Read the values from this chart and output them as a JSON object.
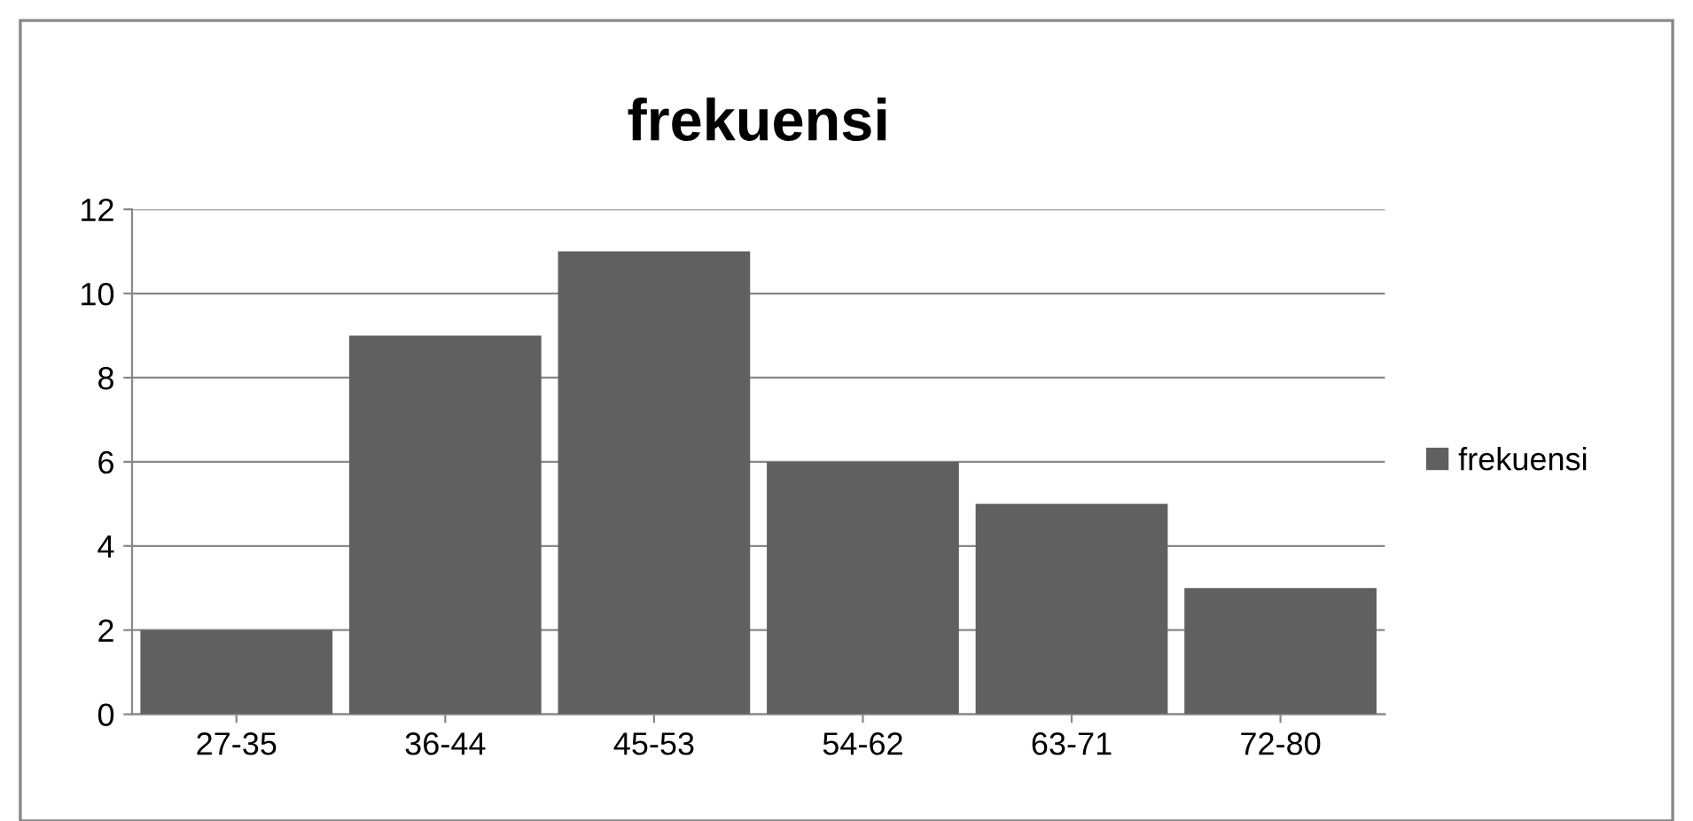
{
  "chart_data": {
    "type": "bar",
    "title": "frekuensi",
    "categories": [
      "27-35",
      "36-44",
      "45-53",
      "54-62",
      "63-71",
      "72-80"
    ],
    "series": [
      {
        "name": "frekuensi",
        "color": "#606060",
        "values": [
          2,
          9,
          11,
          6,
          5,
          3
        ]
      }
    ],
    "ylim": [
      0,
      12
    ],
    "yticks": [
      0,
      2,
      4,
      6,
      8,
      10,
      12
    ],
    "grid": "y",
    "legend": "right"
  }
}
